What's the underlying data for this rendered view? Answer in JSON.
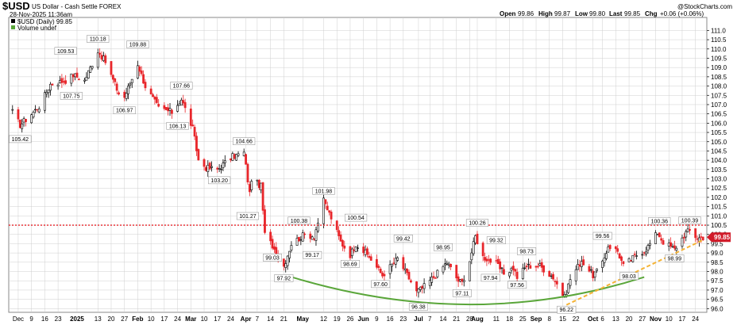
{
  "header": {
    "symbol": "$USD",
    "description": "US Dollar - Cash Settle  FOREX",
    "date": "28-Nov-2025 11:36am",
    "copyright": "@StockCharts.com",
    "ohlc": {
      "open_label": "Open",
      "open": "99.86",
      "high_label": "High",
      "high": "99.87",
      "low_label": "Low",
      "low": "99.80",
      "last_label": "Last",
      "last": "99.85",
      "chg_label": "Chg",
      "chg": "+0.06 (+0.06%)"
    }
  },
  "legend": {
    "price_label": "$USD (Daily) 99.85",
    "volume_label": "Volume undef"
  },
  "colors": {
    "up": "#000000",
    "down": "#e8262b",
    "support_line": "#e8262b",
    "arc": "#5aa63a",
    "trendline": "#f5b335",
    "grid": "#cfcfcf",
    "last_box": "#d11c2a"
  },
  "chart_data": {
    "type": "candlestick",
    "ylim": [
      95.8,
      111.7
    ],
    "y_ticks": [
      96.0,
      96.5,
      97.0,
      97.5,
      98.0,
      98.5,
      99.0,
      99.5,
      100.0,
      100.5,
      101.0,
      101.5,
      102.0,
      102.5,
      103.0,
      103.5,
      104.0,
      104.5,
      105.0,
      105.5,
      106.0,
      106.5,
      107.0,
      107.5,
      108.0,
      108.5,
      109.0,
      109.5,
      110.0,
      110.5,
      111.0
    ],
    "x_labels": [
      "Dec",
      "9",
      "16",
      "23",
      "2025",
      "13",
      "20",
      "27",
      "Feb",
      "10",
      "17",
      "24",
      "Mar",
      "10",
      "17",
      "24",
      "Apr",
      "7",
      "14",
      "21",
      "May",
      "12",
      "19",
      "26",
      "Jun",
      "9",
      "16",
      "23",
      "Jul",
      "7",
      "14",
      "21",
      "28",
      "Aug",
      "11",
      "18",
      "25",
      "Sep",
      "8",
      "15",
      "22",
      "Oct",
      "6",
      "13",
      "20",
      "27",
      "Nov",
      "10",
      "17",
      "24"
    ],
    "x_label_dates": [
      "2024-12-02",
      "2024-12-09",
      "2024-12-16",
      "2024-12-23",
      "2025-01-02",
      "2025-01-13",
      "2025-01-20",
      "2025-01-27",
      "2025-02-03",
      "2025-02-10",
      "2025-02-17",
      "2025-02-24",
      "2025-03-03",
      "2025-03-10",
      "2025-03-17",
      "2025-03-24",
      "2025-04-01",
      "2025-04-07",
      "2025-04-14",
      "2025-04-21",
      "2025-05-01",
      "2025-05-12",
      "2025-05-19",
      "2025-05-26",
      "2025-06-02",
      "2025-06-09",
      "2025-06-16",
      "2025-06-23",
      "2025-07-01",
      "2025-07-07",
      "2025-07-14",
      "2025-07-21",
      "2025-07-28",
      "2025-08-01",
      "2025-08-11",
      "2025-08-18",
      "2025-08-25",
      "2025-09-01",
      "2025-09-08",
      "2025-09-15",
      "2025-09-22",
      "2025-10-01",
      "2025-10-06",
      "2025-10-13",
      "2025-10-20",
      "2025-10-27",
      "2025-11-03",
      "2025-11-10",
      "2025-11-17",
      "2025-11-24"
    ],
    "bold_labels": [
      "2025",
      "Feb",
      "Mar",
      "Apr",
      "May",
      "Jun",
      "Jul",
      "Aug",
      "Sep",
      "Oct",
      "Nov"
    ],
    "last_value": "99.85",
    "support_level": 100.5,
    "annotations": [
      {
        "date": "2024-12-03",
        "value": 105.42,
        "label": "105.42",
        "pos": "below"
      },
      {
        "date": "2024-12-27",
        "value": 109.53,
        "label": "109.53",
        "pos": "above"
      },
      {
        "date": "2024-12-30",
        "value": 107.75,
        "label": "107.75",
        "pos": "below"
      },
      {
        "date": "2025-01-13",
        "value": 110.18,
        "label": "110.18",
        "pos": "above"
      },
      {
        "date": "2025-01-27",
        "value": 106.97,
        "label": "106.97",
        "pos": "below"
      },
      {
        "date": "2025-02-03",
        "value": 109.88,
        "label": "109.88",
        "pos": "above"
      },
      {
        "date": "2025-02-26",
        "value": 107.66,
        "label": "107.66",
        "pos": "above"
      },
      {
        "date": "2025-02-24",
        "value": 106.13,
        "label": "106.13",
        "pos": "below"
      },
      {
        "date": "2025-03-18",
        "value": 103.2,
        "label": "103.20",
        "pos": "below"
      },
      {
        "date": "2025-03-31",
        "value": 104.66,
        "label": "104.66",
        "pos": "above"
      },
      {
        "date": "2025-04-02",
        "value": 101.27,
        "label": "101.27",
        "pos": "below"
      },
      {
        "date": "2025-04-15",
        "value": 99.03,
        "label": "99.03",
        "pos": "below"
      },
      {
        "date": "2025-04-21",
        "value": 97.92,
        "label": "97.92",
        "pos": "below"
      },
      {
        "date": "2025-04-29",
        "value": 100.38,
        "label": "100.38",
        "pos": "above"
      },
      {
        "date": "2025-05-06",
        "value": 99.17,
        "label": "99.17",
        "pos": "below"
      },
      {
        "date": "2025-05-12",
        "value": 101.98,
        "label": "101.98",
        "pos": "above"
      },
      {
        "date": "2025-05-26",
        "value": 98.69,
        "label": "98.69",
        "pos": "below"
      },
      {
        "date": "2025-05-29",
        "value": 100.54,
        "label": "100.54",
        "pos": "above"
      },
      {
        "date": "2025-06-11",
        "value": 97.6,
        "label": "97.60",
        "pos": "below"
      },
      {
        "date": "2025-06-23",
        "value": 99.42,
        "label": "99.42",
        "pos": "above"
      },
      {
        "date": "2025-07-01",
        "value": 96.38,
        "label": "96.38",
        "pos": "below"
      },
      {
        "date": "2025-07-14",
        "value": 98.95,
        "label": "98.95",
        "pos": "above"
      },
      {
        "date": "2025-07-24",
        "value": 97.11,
        "label": "97.11",
        "pos": "below"
      },
      {
        "date": "2025-08-01",
        "value": 100.26,
        "label": "100.26",
        "pos": "above"
      },
      {
        "date": "2025-08-11",
        "value": 99.32,
        "label": "99.32",
        "pos": "above"
      },
      {
        "date": "2025-08-08",
        "value": 97.94,
        "label": "97.94",
        "pos": "below"
      },
      {
        "date": "2025-08-27",
        "value": 98.73,
        "label": "98.73",
        "pos": "above"
      },
      {
        "date": "2025-08-22",
        "value": 97.56,
        "label": "97.56",
        "pos": "below"
      },
      {
        "date": "2025-09-17",
        "value": 96.22,
        "label": "96.22",
        "pos": "below"
      },
      {
        "date": "2025-10-06",
        "value": 99.56,
        "label": "99.56",
        "pos": "above"
      },
      {
        "date": "2025-10-20",
        "value": 98.03,
        "label": "98.03",
        "pos": "below"
      },
      {
        "date": "2025-11-05",
        "value": 100.36,
        "label": "100.36",
        "pos": "above"
      },
      {
        "date": "2025-11-13",
        "value": 98.99,
        "label": "98.99",
        "pos": "below"
      },
      {
        "date": "2025-11-21",
        "value": 100.39,
        "label": "100.39",
        "pos": "above"
      }
    ],
    "anchors": [
      [
        "2024-11-29",
        106.6
      ],
      [
        "2024-12-03",
        105.9
      ],
      [
        "2024-12-06",
        106.2
      ],
      [
        "2024-12-13",
        106.9
      ],
      [
        "2024-12-19",
        108.1
      ],
      [
        "2024-12-27",
        108.3
      ],
      [
        "2024-12-31",
        108.6
      ],
      [
        "2025-01-06",
        108.3
      ],
      [
        "2025-01-13",
        109.9
      ],
      [
        "2025-01-17",
        109.3
      ],
      [
        "2025-01-24",
        107.6
      ],
      [
        "2025-01-27",
        107.4
      ],
      [
        "2025-01-31",
        108.4
      ],
      [
        "2025-02-03",
        109.2
      ],
      [
        "2025-02-07",
        108.0
      ],
      [
        "2025-02-14",
        106.8
      ],
      [
        "2025-02-21",
        106.6
      ],
      [
        "2025-02-26",
        107.3
      ],
      [
        "2025-03-04",
        105.7
      ],
      [
        "2025-03-07",
        104.0
      ],
      [
        "2025-03-11",
        103.6
      ],
      [
        "2025-03-17",
        103.5
      ],
      [
        "2025-03-25",
        104.2
      ],
      [
        "2025-03-31",
        104.4
      ],
      [
        "2025-04-03",
        102.2
      ],
      [
        "2025-04-04",
        103.0
      ],
      [
        "2025-04-09",
        102.6
      ],
      [
        "2025-04-11",
        100.0
      ],
      [
        "2025-04-15",
        99.4
      ],
      [
        "2025-04-21",
        98.3
      ],
      [
        "2025-04-25",
        99.5
      ],
      [
        "2025-05-02",
        100.0
      ],
      [
        "2025-05-07",
        99.9
      ],
      [
        "2025-05-12",
        101.8
      ],
      [
        "2025-05-16",
        100.9
      ],
      [
        "2025-05-21",
        99.6
      ],
      [
        "2025-05-26",
        98.9
      ],
      [
        "2025-05-29",
        99.5
      ],
      [
        "2025-06-05",
        98.8
      ],
      [
        "2025-06-12",
        97.8
      ],
      [
        "2025-06-20",
        98.7
      ],
      [
        "2025-06-24",
        98.0
      ],
      [
        "2025-06-30",
        96.9
      ],
      [
        "2025-07-03",
        97.1
      ],
      [
        "2025-07-10",
        97.8
      ],
      [
        "2025-07-16",
        98.5
      ],
      [
        "2025-07-22",
        97.5
      ],
      [
        "2025-07-24",
        97.4
      ],
      [
        "2025-07-28",
        98.6
      ],
      [
        "2025-07-31",
        99.9
      ],
      [
        "2025-08-04",
        98.8
      ],
      [
        "2025-08-11",
        98.4
      ],
      [
        "2025-08-15",
        97.9
      ],
      [
        "2025-08-20",
        98.2
      ],
      [
        "2025-08-22",
        97.7
      ],
      [
        "2025-08-27",
        98.3
      ],
      [
        "2025-09-03",
        98.3
      ],
      [
        "2025-09-10",
        97.7
      ],
      [
        "2025-09-16",
        96.6
      ],
      [
        "2025-09-19",
        97.6
      ],
      [
        "2025-09-25",
        98.6
      ],
      [
        "2025-10-01",
        97.8
      ],
      [
        "2025-10-06",
        98.4
      ],
      [
        "2025-10-09",
        99.4
      ],
      [
        "2025-10-14",
        99.1
      ],
      [
        "2025-10-17",
        98.3
      ],
      [
        "2025-10-24",
        98.9
      ],
      [
        "2025-10-29",
        99.2
      ],
      [
        "2025-11-04",
        100.1
      ],
      [
        "2025-11-07",
        99.6
      ],
      [
        "2025-11-13",
        99.2
      ],
      [
        "2025-11-19",
        100.1
      ],
      [
        "2025-11-21",
        100.2
      ],
      [
        "2025-11-25",
        99.8
      ],
      [
        "2025-11-28",
        99.85
      ]
    ]
  }
}
